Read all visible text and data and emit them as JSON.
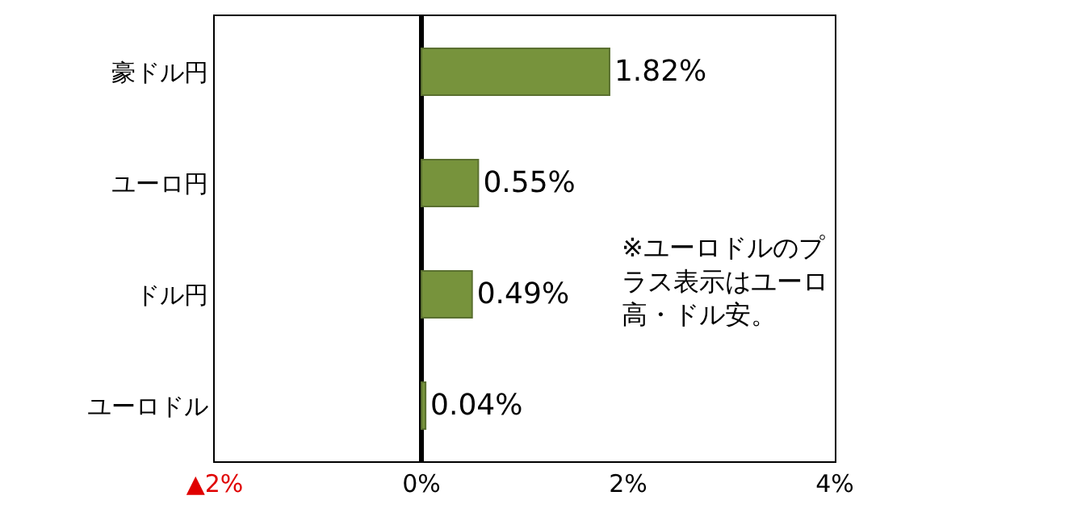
{
  "chart_data": {
    "type": "bar",
    "orientation": "horizontal",
    "categories": [
      "豪ドル円",
      "ユーロ円",
      "ドル円",
      "ユーロドル"
    ],
    "values": [
      1.82,
      0.55,
      0.49,
      0.04
    ],
    "value_labels": [
      "1.82%",
      "0.55%",
      "0.49%",
      "0.04%"
    ],
    "color": "#77933c",
    "xlim": [
      -2,
      4
    ],
    "xticks": [
      {
        "value": -2,
        "label": "▲2%"
      },
      {
        "value": 0,
        "label": "0%"
      },
      {
        "value": 2,
        "label": "2%"
      },
      {
        "value": 4,
        "label": "4%"
      }
    ],
    "annotations": [
      "※ユーロドルのプラス表示はユーロ高・ドル安。"
    ],
    "legend": false
  }
}
